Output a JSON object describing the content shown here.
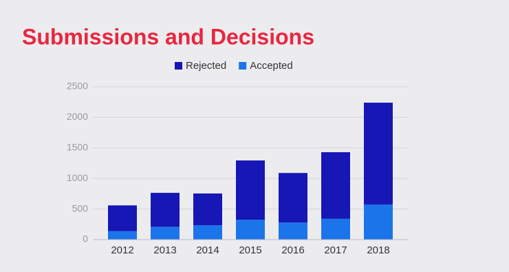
{
  "chart_data": {
    "type": "stacked_bar",
    "title": "Submissions and Decisions",
    "categories": [
      "2012",
      "2013",
      "2014",
      "2015",
      "2016",
      "2017",
      "2018"
    ],
    "series": [
      {
        "name": "Rejected",
        "color": "#1717b5",
        "values": [
          420,
          555,
          520,
          970,
          810,
          1090,
          1665
        ]
      },
      {
        "name": "Accepted",
        "color": "#1c74ea",
        "values": [
          140,
          210,
          235,
          325,
          280,
          340,
          575
        ]
      }
    ],
    "ylim": [
      0,
      2500
    ],
    "yticks": [
      0,
      500,
      1000,
      1500,
      2000,
      2500
    ],
    "grid": true,
    "legend": "top"
  }
}
